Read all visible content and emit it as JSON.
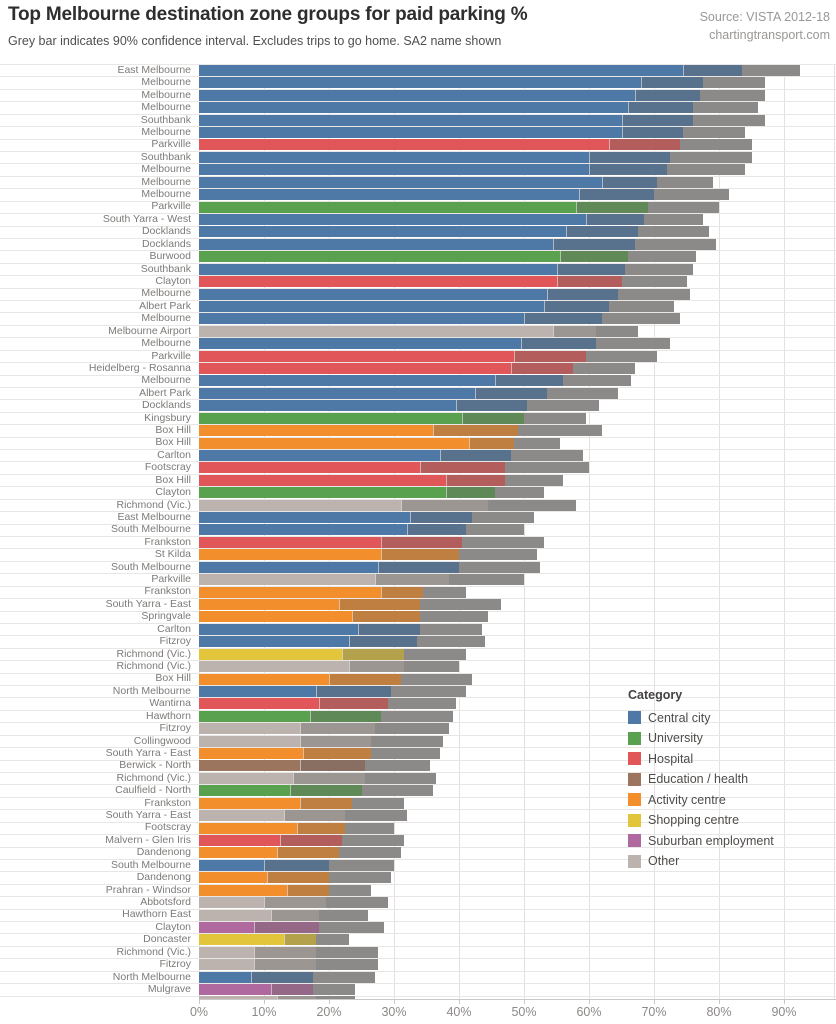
{
  "header": {
    "title": "Top Melbourne destination zone groups for paid parking %",
    "subtitle": "Grey bar indicates 90% confidence interval. Excludes trips to go home. SA2 name shown",
    "source_line1": "Source: VISTA 2012-18",
    "source_line2": "chartingtransport.com"
  },
  "legend": {
    "title": "Category",
    "items": [
      {
        "label": "Central city",
        "color": "#4e79a7"
      },
      {
        "label": "University",
        "color": "#59a14f"
      },
      {
        "label": "Hospital",
        "color": "#e15759"
      },
      {
        "label": "Education / health",
        "color": "#9c755f"
      },
      {
        "label": "Activity centre",
        "color": "#f28e2b"
      },
      {
        "label": "Shopping centre",
        "color": "#e3c53c"
      },
      {
        "label": "Suburban employment",
        "color": "#b0699e"
      },
      {
        "label": "Other",
        "color": "#bcb3ae"
      }
    ]
  },
  "chart_data": {
    "type": "bar",
    "orientation": "horizontal",
    "value_unit": "%",
    "xlim": [
      0,
      98
    ],
    "x_ticks": [
      "0%",
      "10%",
      "20%",
      "30%",
      "40%",
      "50%",
      "60%",
      "70%",
      "80%",
      "90%"
    ],
    "ci_note": "grey bar = 90% confidence interval",
    "ci_color": "#8c8a88",
    "rows": [
      {
        "label": "East Melbourne",
        "category": "Central city",
        "value": 83.5,
        "ci": [
          74.5,
          92.5
        ]
      },
      {
        "label": "Melbourne",
        "category": "Central city",
        "value": 77.5,
        "ci": [
          68,
          87
        ]
      },
      {
        "label": "Melbourne",
        "category": "Central city",
        "value": 77,
        "ci": [
          67,
          87
        ]
      },
      {
        "label": "Melbourne",
        "category": "Central city",
        "value": 76,
        "ci": [
          66,
          86
        ]
      },
      {
        "label": "Southbank",
        "category": "Central city",
        "value": 76,
        "ci": [
          65,
          87
        ]
      },
      {
        "label": "Melbourne",
        "category": "Central city",
        "value": 74.5,
        "ci": [
          65,
          84
        ]
      },
      {
        "label": "Parkville",
        "category": "Hospital",
        "value": 74,
        "ci": [
          63,
          85
        ]
      },
      {
        "label": "Southbank",
        "category": "Central city",
        "value": 72.5,
        "ci": [
          60,
          85
        ]
      },
      {
        "label": "Melbourne",
        "category": "Central city",
        "value": 72,
        "ci": [
          60,
          84
        ]
      },
      {
        "label": "Melbourne",
        "category": "Central city",
        "value": 70.5,
        "ci": [
          62,
          79
        ]
      },
      {
        "label": "Melbourne",
        "category": "Central city",
        "value": 70,
        "ci": [
          58.5,
          81.5
        ]
      },
      {
        "label": "Parkville",
        "category": "University",
        "value": 69,
        "ci": [
          58,
          80
        ]
      },
      {
        "label": "South Yarra - West",
        "category": "Central city",
        "value": 68.5,
        "ci": [
          59.5,
          77.5
        ]
      },
      {
        "label": "Docklands",
        "category": "Central city",
        "value": 67.5,
        "ci": [
          56.5,
          78.5
        ]
      },
      {
        "label": "Docklands",
        "category": "Central city",
        "value": 67,
        "ci": [
          54.5,
          79.5
        ]
      },
      {
        "label": "Burwood",
        "category": "University",
        "value": 66,
        "ci": [
          55.5,
          76.5
        ]
      },
      {
        "label": "Southbank",
        "category": "Central city",
        "value": 65.5,
        "ci": [
          55,
          76
        ]
      },
      {
        "label": "Clayton",
        "category": "Hospital",
        "value": 65,
        "ci": [
          55,
          75
        ]
      },
      {
        "label": "Melbourne",
        "category": "Central city",
        "value": 64.5,
        "ci": [
          53.5,
          75.5
        ]
      },
      {
        "label": "Albert Park",
        "category": "Central city",
        "value": 63,
        "ci": [
          53,
          73
        ]
      },
      {
        "label": "Melbourne",
        "category": "Central city",
        "value": 62,
        "ci": [
          50,
          74
        ]
      },
      {
        "label": "Melbourne Airport",
        "category": "Other",
        "value": 61,
        "ci": [
          54.5,
          67.5
        ]
      },
      {
        "label": "Melbourne",
        "category": "Central city",
        "value": 61,
        "ci": [
          49.5,
          72.5
        ]
      },
      {
        "label": "Parkville",
        "category": "Hospital",
        "value": 59.5,
        "ci": [
          48.5,
          70.5
        ]
      },
      {
        "label": "Heidelberg - Rosanna",
        "category": "Hospital",
        "value": 57.5,
        "ci": [
          48,
          67
        ]
      },
      {
        "label": "Melbourne",
        "category": "Central city",
        "value": 56,
        "ci": [
          45.5,
          66.5
        ]
      },
      {
        "label": "Albert Park",
        "category": "Central city",
        "value": 53.5,
        "ci": [
          42.5,
          64.5
        ]
      },
      {
        "label": "Docklands",
        "category": "Central city",
        "value": 50.5,
        "ci": [
          39.5,
          61.5
        ]
      },
      {
        "label": "Kingsbury",
        "category": "University",
        "value": 50,
        "ci": [
          40.5,
          59.5
        ]
      },
      {
        "label": "Box Hill",
        "category": "Activity centre",
        "value": 49,
        "ci": [
          36,
          62
        ]
      },
      {
        "label": "Box Hill",
        "category": "Activity centre",
        "value": 48.5,
        "ci": [
          41.5,
          55.5
        ]
      },
      {
        "label": "Carlton",
        "category": "Central city",
        "value": 48,
        "ci": [
          37,
          59
        ]
      },
      {
        "label": "Footscray",
        "category": "Hospital",
        "value": 47,
        "ci": [
          34,
          60
        ]
      },
      {
        "label": "Box Hill",
        "category": "Hospital",
        "value": 47,
        "ci": [
          38,
          56
        ]
      },
      {
        "label": "Clayton",
        "category": "University",
        "value": 45.5,
        "ci": [
          38,
          53
        ]
      },
      {
        "label": "Richmond (Vic.)",
        "category": "Other",
        "value": 44.5,
        "ci": [
          31,
          58
        ]
      },
      {
        "label": "East Melbourne",
        "category": "Central city",
        "value": 42,
        "ci": [
          32.5,
          51.5
        ]
      },
      {
        "label": "South Melbourne",
        "category": "Central city",
        "value": 41,
        "ci": [
          32,
          50
        ]
      },
      {
        "label": "Frankston",
        "category": "Hospital",
        "value": 40.5,
        "ci": [
          28,
          53
        ]
      },
      {
        "label": "St Kilda",
        "category": "Activity centre",
        "value": 40,
        "ci": [
          28,
          52
        ]
      },
      {
        "label": "South Melbourne",
        "category": "Central city",
        "value": 40,
        "ci": [
          27.5,
          52.5
        ]
      },
      {
        "label": "Parkville",
        "category": "Other",
        "value": 38.5,
        "ci": [
          27,
          50
        ]
      },
      {
        "label": "Frankston",
        "category": "Activity centre",
        "value": 34.5,
        "ci": [
          28,
          41
        ]
      },
      {
        "label": "South Yarra - East",
        "category": "Activity centre",
        "value": 34,
        "ci": [
          21.5,
          46.5
        ]
      },
      {
        "label": "Springvale",
        "category": "Activity centre",
        "value": 34,
        "ci": [
          23.5,
          44.5
        ]
      },
      {
        "label": "Carlton",
        "category": "Central city",
        "value": 34,
        "ci": [
          24.5,
          43.5
        ]
      },
      {
        "label": "Fitzroy",
        "category": "Central city",
        "value": 33.5,
        "ci": [
          23,
          44
        ]
      },
      {
        "label": "Richmond (Vic.)",
        "category": "Shopping centre",
        "value": 31.5,
        "ci": [
          22,
          41
        ]
      },
      {
        "label": "Richmond (Vic.)",
        "category": "Other",
        "value": 31.5,
        "ci": [
          23,
          40
        ]
      },
      {
        "label": "Box Hill",
        "category": "Activity centre",
        "value": 31,
        "ci": [
          20,
          42
        ]
      },
      {
        "label": "North Melbourne",
        "category": "Central city",
        "value": 29.5,
        "ci": [
          18,
          41
        ]
      },
      {
        "label": "Wantirna",
        "category": "Hospital",
        "value": 29,
        "ci": [
          18.5,
          39.5
        ]
      },
      {
        "label": "Hawthorn",
        "category": "University",
        "value": 28,
        "ci": [
          17,
          39
        ]
      },
      {
        "label": "Fitzroy",
        "category": "Other",
        "value": 27,
        "ci": [
          15.5,
          38.5
        ]
      },
      {
        "label": "Collingwood",
        "category": "Other",
        "value": 26.5,
        "ci": [
          15.5,
          37.5
        ]
      },
      {
        "label": "South Yarra - East",
        "category": "Activity centre",
        "value": 26.5,
        "ci": [
          16,
          37
        ]
      },
      {
        "label": "Berwick - North",
        "category": "Education / health",
        "value": 25.5,
        "ci": [
          15.5,
          35.5
        ]
      },
      {
        "label": "Richmond (Vic.)",
        "category": "Other",
        "value": 25.5,
        "ci": [
          14.5,
          36.5
        ]
      },
      {
        "label": "Caulfield - North",
        "category": "University",
        "value": 25,
        "ci": [
          14,
          36
        ]
      },
      {
        "label": "Frankston",
        "category": "Activity centre",
        "value": 23.5,
        "ci": [
          15.5,
          31.5
        ]
      },
      {
        "label": "South Yarra - East",
        "category": "Other",
        "value": 22.5,
        "ci": [
          13,
          32
        ]
      },
      {
        "label": "Footscray",
        "category": "Activity centre",
        "value": 22.5,
        "ci": [
          15,
          30
        ]
      },
      {
        "label": "Malvern - Glen Iris",
        "category": "Hospital",
        "value": 22,
        "ci": [
          12.5,
          31.5
        ]
      },
      {
        "label": "Dandenong",
        "category": "Activity centre",
        "value": 21.5,
        "ci": [
          12,
          31
        ]
      },
      {
        "label": "South Melbourne",
        "category": "Central city",
        "value": 20,
        "ci": [
          10,
          30
        ]
      },
      {
        "label": "Dandenong",
        "category": "Activity centre",
        "value": 20,
        "ci": [
          10.5,
          29.5
        ]
      },
      {
        "label": "Prahran - Windsor",
        "category": "Activity centre",
        "value": 20,
        "ci": [
          13.5,
          26.5
        ]
      },
      {
        "label": "Abbotsford",
        "category": "Other",
        "value": 19.5,
        "ci": [
          10,
          29
        ]
      },
      {
        "label": "Hawthorn East",
        "category": "Other",
        "value": 18.5,
        "ci": [
          11,
          26
        ]
      },
      {
        "label": "Clayton",
        "category": "Suburban employment",
        "value": 18.5,
        "ci": [
          8.5,
          28.5
        ]
      },
      {
        "label": "Doncaster",
        "category": "Shopping centre",
        "value": 18,
        "ci": [
          13,
          23
        ]
      },
      {
        "label": "Richmond (Vic.)",
        "category": "Other",
        "value": 18,
        "ci": [
          8.5,
          27.5
        ]
      },
      {
        "label": "Fitzroy",
        "category": "Other",
        "value": 18,
        "ci": [
          8.5,
          27.5
        ]
      },
      {
        "label": "North Melbourne",
        "category": "Central city",
        "value": 17.5,
        "ci": [
          8,
          27
        ]
      },
      {
        "label": "Mulgrave",
        "category": "Suburban employment",
        "value": 17.5,
        "ci": [
          11,
          24
        ]
      },
      {
        "label": "",
        "category": "Other",
        "value": 18,
        "ci": [
          12,
          24
        ]
      }
    ]
  }
}
